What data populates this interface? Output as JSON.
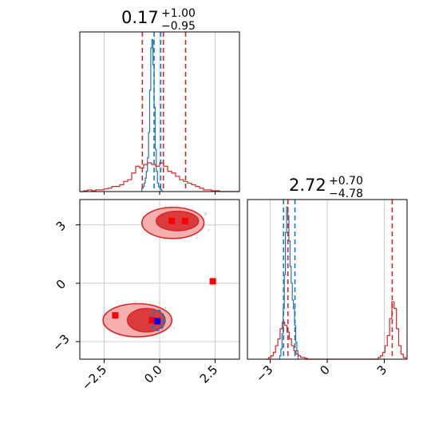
{
  "colors": {
    "red": "#d62728",
    "blue": "#1f77b4",
    "red_fill_light": "#f4a6a6",
    "red_fill_dark": "#d62728",
    "grid": "#cccccc"
  },
  "chart_data": [
    {
      "type": "histogram",
      "panel": "top-left",
      "parameter_index": 0,
      "title": {
        "value": "0.17",
        "plus": "+1.00",
        "minus": "−0.95"
      },
      "xlim": [
        -3.6,
        3.6
      ],
      "x_ticks": [
        -2.5,
        0.0,
        2.5
      ],
      "red_quantile_lines": [
        -0.78,
        0.17,
        1.17
      ],
      "blue_quantile_lines": [
        -0.25,
        0.05
      ],
      "series": [
        {
          "name": "",
          "color": "#1f77b4",
          "bin_start": -0.8,
          "bin_width": 0.05,
          "values": [
            0.02,
            0.03,
            0.05,
            0.08,
            0.12,
            0.2,
            0.35,
            0.6,
            0.85,
            0.9,
            0.75,
            0.5,
            0.25,
            0.12,
            0.05,
            0.03,
            0.02,
            0.01
          ]
        },
        {
          "name": "",
          "color": "#d62728",
          "bin_start": -3.6,
          "bin_width": 0.18,
          "values": [
            0.0,
            0.005,
            0.01,
            0.005,
            0.01,
            0.01,
            0.015,
            0.02,
            0.03,
            0.03,
            0.04,
            0.06,
            0.07,
            0.11,
            0.15,
            0.14,
            0.16,
            0.17,
            0.16,
            0.15,
            0.17,
            0.15,
            0.12,
            0.11,
            0.09,
            0.07,
            0.06,
            0.05,
            0.04,
            0.03,
            0.02,
            0.01,
            0.01,
            0.005,
            0.005,
            0.0,
            0.0,
            0.0,
            0.0,
            0.0
          ]
        }
      ]
    },
    {
      "type": "histogram",
      "panel": "bottom-right",
      "parameter_index": 1,
      "title": {
        "value": "2.72",
        "plus": "+0.70",
        "minus": "−4.78"
      },
      "xlim": [
        -4.2,
        4.2
      ],
      "x_ticks": [
        -3,
        0,
        3
      ],
      "red_quantile_lines": [
        -2.07,
        3.42
      ],
      "blue_quantile_lines": [
        -2.3,
        -1.7
      ],
      "series": [
        {
          "name": "",
          "color": "#1f77b4",
          "bin_start": -2.5,
          "bin_width": 0.06,
          "values": [
            0.02,
            0.06,
            0.15,
            0.3,
            0.5,
            0.75,
            0.9,
            0.85,
            0.7,
            0.55,
            0.45,
            0.35,
            0.3,
            0.2,
            0.1,
            0.05
          ]
        },
        {
          "name": "",
          "color": "#d62728",
          "bin_start": -3.2,
          "bin_width": 0.12,
          "values": [
            0.0,
            0.01,
            0.02,
            0.04,
            0.08,
            0.12,
            0.18,
            0.22,
            0.2,
            0.16,
            0.12,
            0.08,
            0.05,
            0.03,
            0.02,
            0.01,
            0.01,
            0.005,
            0.0,
            0.0,
            0.0,
            0.0,
            0.0,
            0.0,
            0.0,
            0.0,
            0.0,
            0.0,
            0.0,
            0.0,
            0.0,
            0.0,
            0.0,
            0.0,
            0.0,
            0.0,
            0.0,
            0.0,
            0.0,
            0.0,
            0.0,
            0.0,
            0.0,
            0.0,
            0.0,
            0.0,
            0.0,
            0.0,
            0.0,
            0.01,
            0.02,
            0.04,
            0.08,
            0.14,
            0.24,
            0.34,
            0.3,
            0.18,
            0.08,
            0.03,
            0.01
          ]
        }
      ]
    },
    {
      "type": "scatter",
      "panel": "bottom-left",
      "xlim": [
        -3.6,
        3.6
      ],
      "ylim": [
        -3.9,
        4.3
      ],
      "x_ticks": [
        -2.5,
        0.0,
        2.5
      ],
      "y_ticks": [
        -3,
        0,
        3
      ],
      "x_tick_labels": [
        "−2.5",
        "0.0",
        "2.5"
      ],
      "y_tick_labels": [
        "−3",
        "0",
        "3"
      ],
      "red_contours": [
        {
          "level": "outer",
          "cx": 0.6,
          "cy": 3.1,
          "rx": 1.4,
          "ry": 0.8
        },
        {
          "level": "inner",
          "cx": 0.8,
          "cy": 3.2,
          "rx": 0.95,
          "ry": 0.5
        },
        {
          "level": "outer",
          "cx": -1.0,
          "cy": -1.9,
          "rx": 1.55,
          "ry": 0.85
        },
        {
          "level": "inner",
          "cx": -0.6,
          "cy": -1.9,
          "rx": 0.85,
          "ry": 0.6
        }
      ],
      "blue_contours": [
        {
          "cx": -0.1,
          "cy": -1.9,
          "rx": 0.3,
          "ry": 0.5
        }
      ],
      "red_markers": [
        {
          "x": 0.55,
          "y": 3.2
        },
        {
          "x": 1.15,
          "y": 3.2
        },
        {
          "x": -2.0,
          "y": -1.65
        },
        {
          "x": -0.35,
          "y": -1.9
        },
        {
          "x": 2.4,
          "y": 0.1
        }
      ],
      "blue_markers": [
        {
          "x": -0.1,
          "y": -1.95
        }
      ]
    }
  ]
}
